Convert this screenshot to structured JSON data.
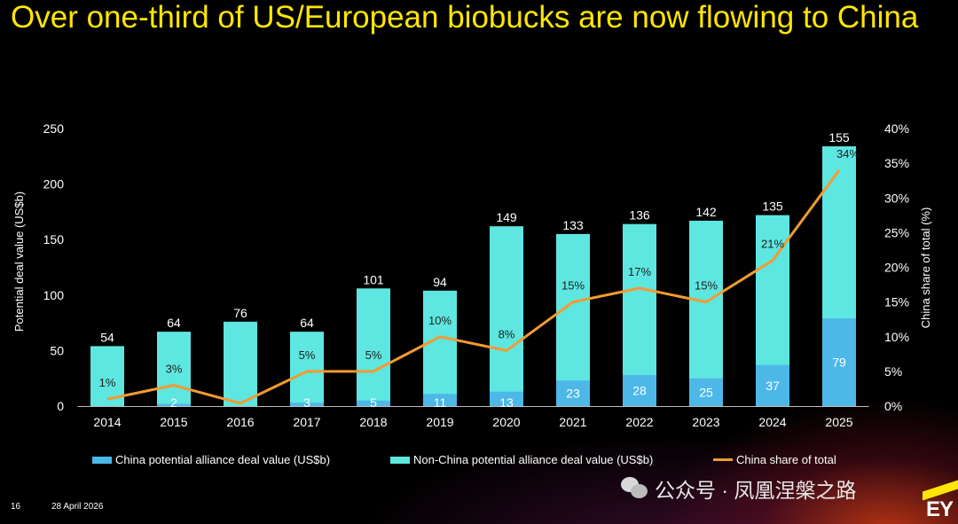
{
  "title": "Over one-third of US/European biobucks are now flowing to China",
  "chart_data": {
    "type": "bar",
    "stacked": true,
    "categories": [
      "2014",
      "2015",
      "2016",
      "2017",
      "2018",
      "2019",
      "2020",
      "2021",
      "2022",
      "2023",
      "2024",
      "2025"
    ],
    "totals": [
      54,
      64,
      76,
      64,
      101,
      94,
      149,
      133,
      136,
      142,
      135,
      155
    ],
    "series": [
      {
        "name": "China potential alliance deal value (US$b)",
        "values": [
          0,
          2,
          0,
          3,
          5,
          11,
          13,
          23,
          28,
          25,
          37,
          79
        ],
        "labels": [
          "",
          "2",
          "",
          "3",
          "5",
          "11",
          "13",
          "23",
          "28",
          "25",
          "37",
          "79"
        ],
        "color": "#4db8e8"
      },
      {
        "name": "Non-China potential alliance deal value (US$b)",
        "color": "#5ee6e0"
      },
      {
        "name": "China share of total",
        "type": "line",
        "axis": "right",
        "values": [
          1,
          3,
          0.4,
          5,
          5,
          10,
          8,
          15,
          17,
          15,
          21,
          34
        ],
        "labels": [
          "1%",
          "3%",
          "",
          "5%",
          "5%",
          "10%",
          "8%",
          "15%",
          "17%",
          "15%",
          "21%",
          "34%"
        ],
        "color": "#f39a32"
      }
    ],
    "bar_heights": [
      54,
      67,
      76,
      67,
      106,
      104,
      162,
      155,
      164,
      167,
      172,
      234
    ],
    "ylabel": "Potential deal value (US$b)",
    "y2label": "China share of total (%)",
    "ylim": [
      0,
      250
    ],
    "yticks": [
      "0",
      "50",
      "100",
      "150",
      "200",
      "250"
    ],
    "y2lim": [
      0,
      40
    ],
    "y2ticks": [
      "0%",
      "5%",
      "10%",
      "15%",
      "20%",
      "25%",
      "30%",
      "35%",
      "40%"
    ],
    "legend_position": "bottom",
    "grid": false
  },
  "legend": {
    "china": "China potential alliance deal value (US$b)",
    "nonchina": "Non-China potential alliance deal value (US$b)",
    "share": "China share of total"
  },
  "footer": {
    "page": "16",
    "date": "28 April 2026"
  },
  "watermark": "公众号 · 凤凰涅槃之路",
  "logo": "EY",
  "colors": {
    "title": "#ffe600",
    "china": "#4db8e8",
    "nonchina": "#5ee6e0",
    "line": "#f39a32"
  }
}
